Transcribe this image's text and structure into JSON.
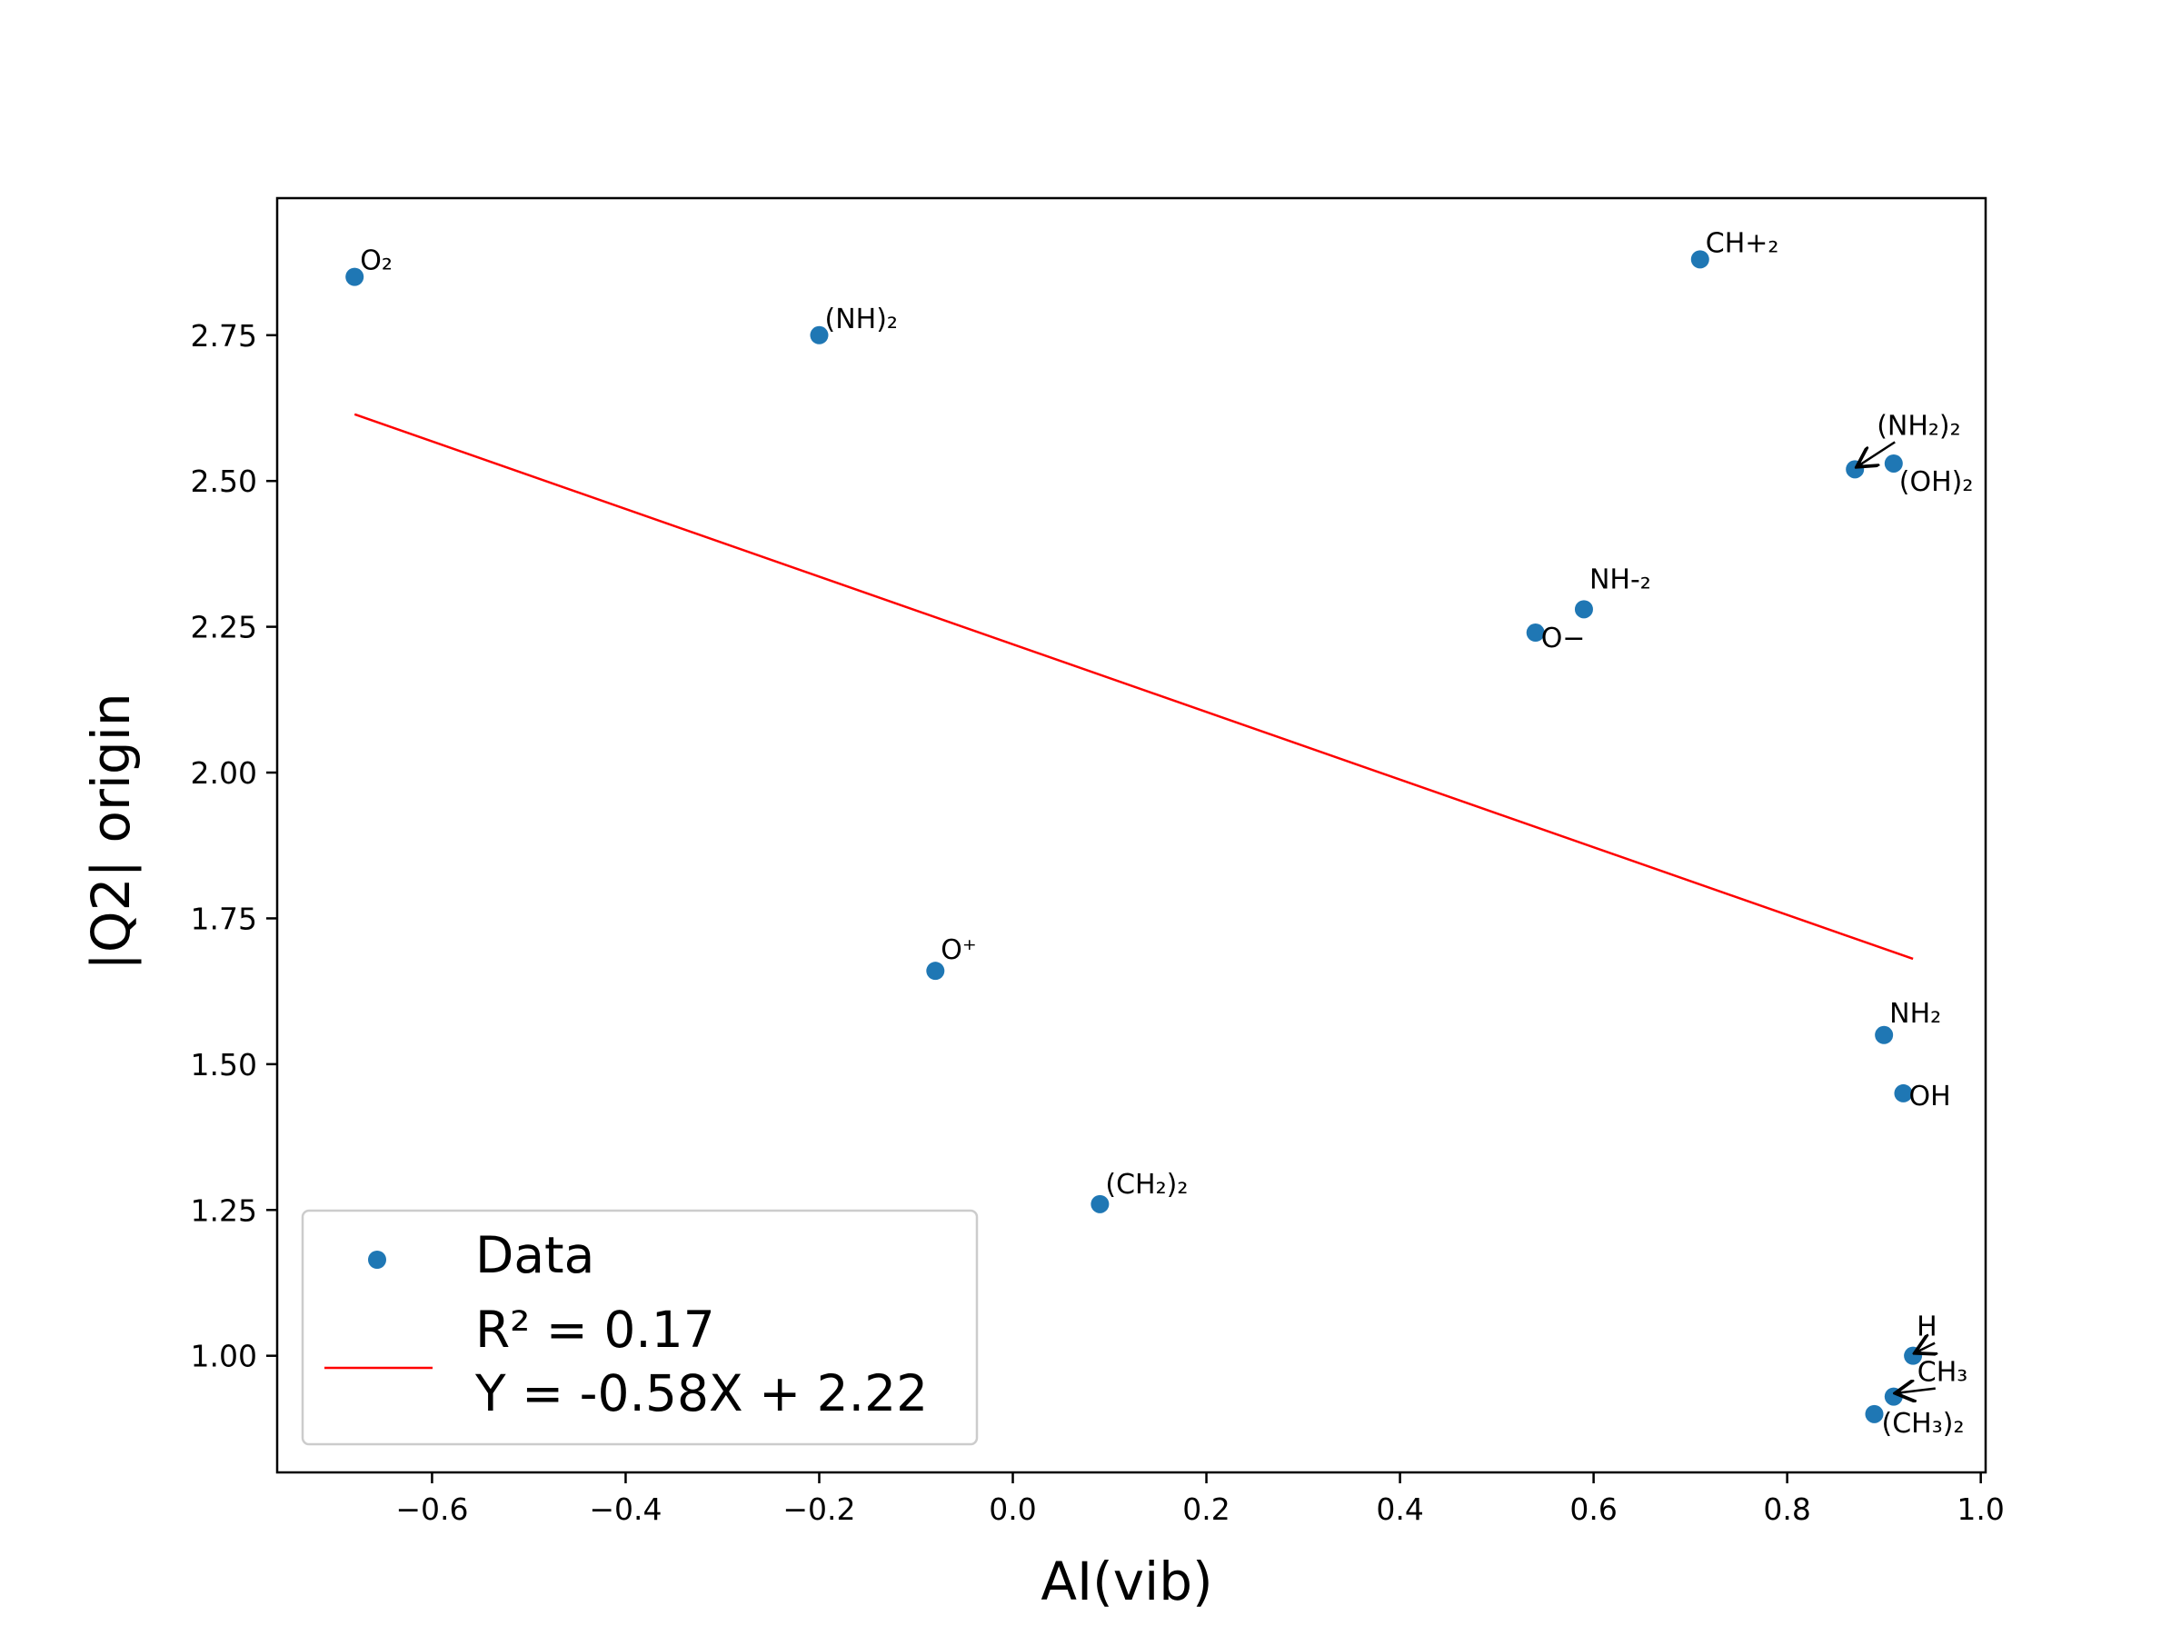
{
  "chart_data": {
    "type": "scatter",
    "title": "",
    "xlabel": "AI(vib)",
    "ylabel": "|Q2| origin",
    "xlim": [
      -0.76,
      1.005
    ],
    "ylim": [
      0.8,
      2.985
    ],
    "x_ticks": [
      -0.6,
      -0.4,
      -0.2,
      0.0,
      0.2,
      0.4,
      0.6,
      0.8,
      1.0
    ],
    "x_tick_labels": [
      "−0.6",
      "−0.4",
      "−0.2",
      "0.0",
      "0.2",
      "0.4",
      "0.6",
      "0.8",
      "1.0"
    ],
    "y_ticks": [
      1.0,
      1.25,
      1.5,
      1.75,
      2.0,
      2.25,
      2.5,
      2.75
    ],
    "y_tick_labels": [
      "1.00",
      "1.25",
      "1.50",
      "1.75",
      "2.00",
      "2.25",
      "2.50",
      "2.75"
    ],
    "grid": false,
    "legend_position": "lower-left",
    "point_color": "#1f77b4",
    "fit_color": "#ff0000",
    "points": [
      {
        "x": -0.68,
        "y": 2.85,
        "label": "O₂"
      },
      {
        "x": -0.2,
        "y": 2.75,
        "label": "(NH)₂"
      },
      {
        "x": 0.71,
        "y": 2.88,
        "label": "CH+₂"
      },
      {
        "x": 0.87,
        "y": 2.52,
        "label": "(NH₂)₂"
      },
      {
        "x": 0.91,
        "y": 2.53,
        "label": "(OH)₂"
      },
      {
        "x": 0.59,
        "y": 2.28,
        "label": "NH-₂"
      },
      {
        "x": 0.54,
        "y": 2.24,
        "label": "O−"
      },
      {
        "x": -0.08,
        "y": 1.66,
        "label": "O⁺"
      },
      {
        "x": 0.9,
        "y": 1.55,
        "label": "NH₂"
      },
      {
        "x": 0.92,
        "y": 1.45,
        "label": "OH"
      },
      {
        "x": 0.09,
        "y": 1.26,
        "label": "(CH₂)₂"
      },
      {
        "x": 0.93,
        "y": 1.0,
        "label": "H"
      },
      {
        "x": 0.91,
        "y": 0.93,
        "label": "CH₃"
      },
      {
        "x": 0.89,
        "y": 0.9,
        "label": "(CH₃)₂"
      }
    ],
    "fit_line": {
      "slope": -0.58,
      "intercept": 2.22,
      "x_range": [
        -0.68,
        0.93
      ]
    },
    "legend": {
      "data_label": "Data",
      "fit_label_line1": "R² = 0.17",
      "fit_label_line2": "Y = -0.58X + 2.22"
    }
  }
}
